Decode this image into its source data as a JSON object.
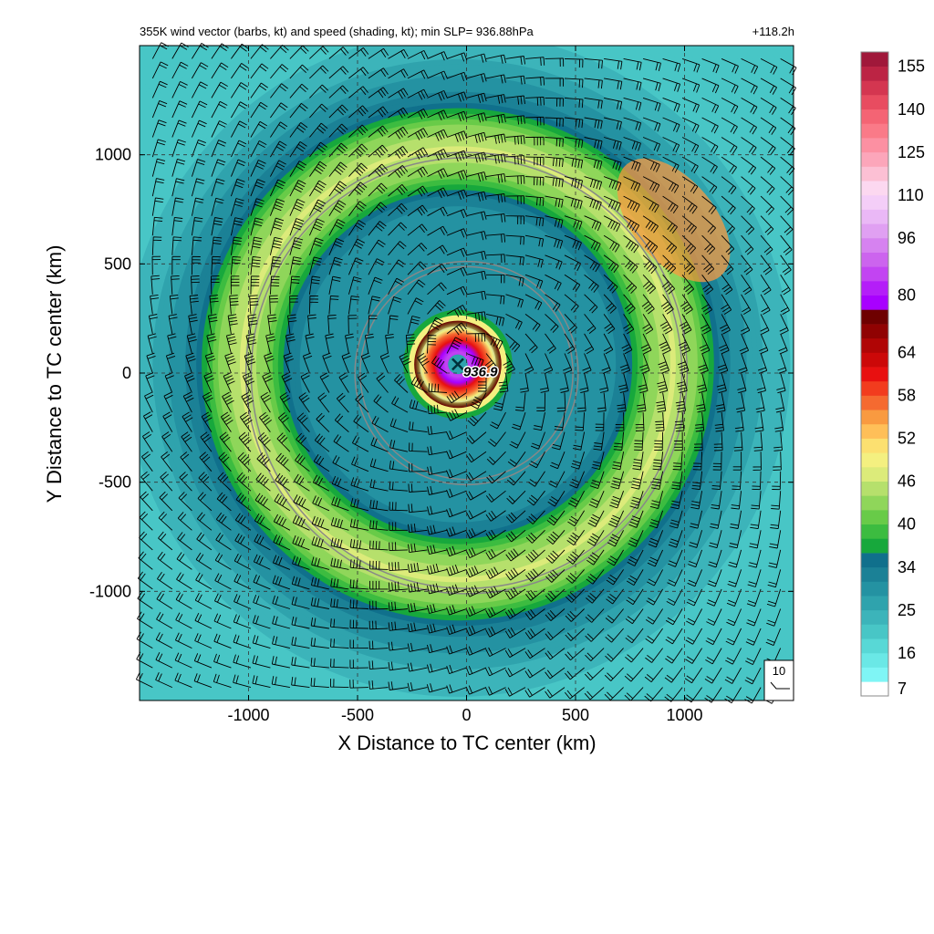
{
  "header": {
    "title": "355K wind vector (barbs, kt) and speed (shading, kt); min SLP= 936.88hPa",
    "time": "+118.2h"
  },
  "chart_data": {
    "type": "heatmap",
    "title": "355K wind vector (barbs, kt) and speed (shading, kt); min SLP= 936.88hPa",
    "time_label": "+118.2h",
    "xlabel": "X Distance to TC center (km)",
    "ylabel": "Y Distance to TC center (km)",
    "xlim": [
      -1500,
      1500
    ],
    "ylim": [
      -1500,
      1500
    ],
    "x_ticks": [
      -1000,
      -500,
      0,
      500,
      1000
    ],
    "y_ticks": [
      -1000,
      -500,
      0,
      500,
      1000
    ],
    "grid": true,
    "center_marker": {
      "x": -40,
      "y": 40,
      "label": "936.9"
    },
    "range_rings_km": [
      500,
      1000
    ],
    "reference_barb": {
      "label": "10"
    },
    "colorbar": {
      "tick_labels": [
        "7",
        "16",
        "25",
        "34",
        "40",
        "46",
        "52",
        "58",
        "64",
        "80",
        "96",
        "110",
        "125",
        "140",
        "155"
      ],
      "levels": [
        7,
        10,
        13,
        16,
        19,
        22,
        25,
        28,
        31,
        34,
        36,
        38,
        40,
        42,
        44,
        46,
        48,
        50,
        52,
        54,
        56,
        58,
        60,
        62,
        64,
        68,
        72,
        76,
        80,
        84,
        88,
        92,
        96,
        100,
        105,
        110,
        115,
        120,
        125,
        130,
        135,
        140,
        145,
        150,
        155,
        160
      ],
      "colors": [
        "#ffffff",
        "#7ff5f5",
        "#6ae8e6",
        "#58d8d6",
        "#48c6c6",
        "#3cb4ba",
        "#2fa3ad",
        "#2492a2",
        "#1b8196",
        "#10708c",
        "#17a83c",
        "#3cbc40",
        "#68cb48",
        "#8fd65a",
        "#b6e06c",
        "#dceb7a",
        "#f4f080",
        "#fce070",
        "#ffbf58",
        "#f99a40",
        "#f56a30",
        "#f23c1e",
        "#e81010",
        "#cc0808",
        "#b00505",
        "#900202",
        "#6e0000",
        "#a800ff",
        "#b41ef8",
        "#c244f2",
        "#cc64ee",
        "#d682f0",
        "#e0a0f2",
        "#eab8f6",
        "#f4cef8",
        "#fcd8f0",
        "#fcc0d4",
        "#fca6ba",
        "#fc90a2",
        "#fa7a88",
        "#f46474",
        "#e84c60",
        "#d43650",
        "#bc2444",
        "#a0183a"
      ]
    }
  },
  "colors": {
    "grid": "#333333",
    "rings": "#888888",
    "barbs": "#000000"
  }
}
